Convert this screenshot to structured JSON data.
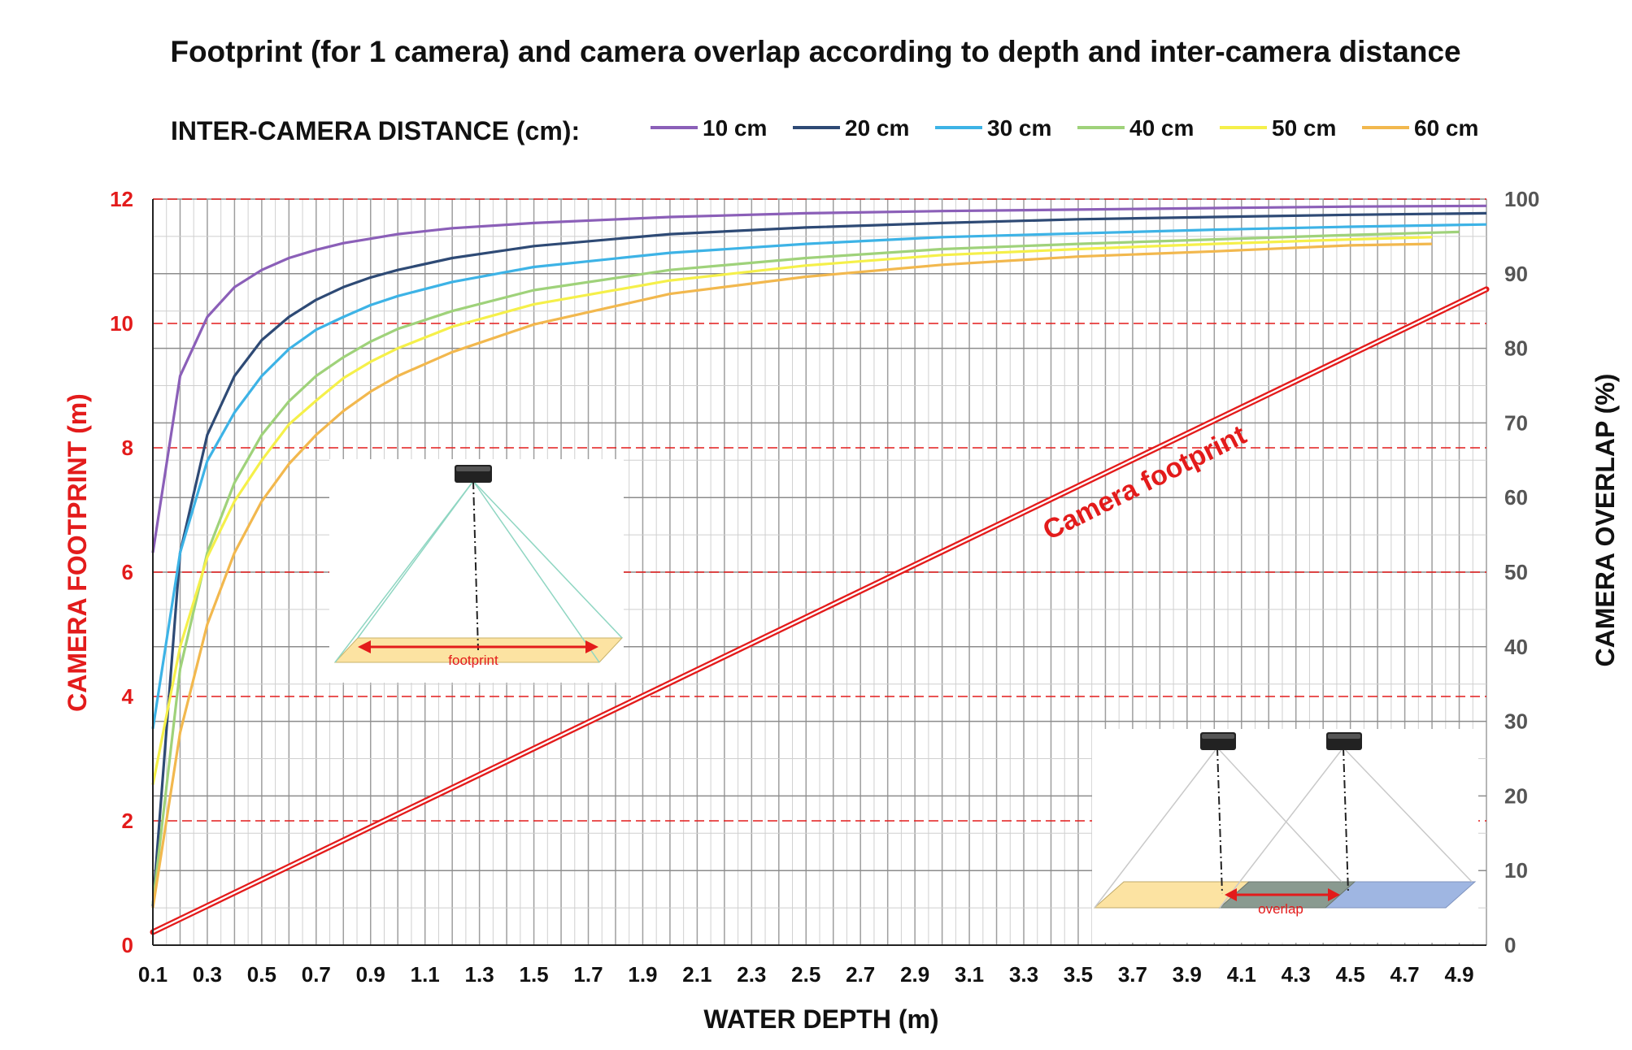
{
  "chart_data": {
    "type": "line",
    "title": "Footprint (for 1 camera) and camera overlap according to depth and inter-camera distance",
    "legend": {
      "title": "INTER-CAMERA  DISTANCE (cm):",
      "placement": "top"
    },
    "xlabel": "WATER DEPTH (m)",
    "ylabel_left": "CAMERA FOOTPRINT (m)",
    "ylabel_right": "CAMERA OVERLAP (%)",
    "xlim": [
      0.1,
      5.0
    ],
    "ylim_left": [
      0,
      12
    ],
    "ylim_right": [
      0,
      100
    ],
    "x_ticks": [
      "0.1",
      "0.3",
      "0.5",
      "0.7",
      "0.9",
      "1.1",
      "1.3",
      "1.5",
      "1.7",
      "1.9",
      "2.1",
      "2.3",
      "2.5",
      "2.7",
      "2.9",
      "3.1",
      "3.3",
      "3.5",
      "3.7",
      "3.9",
      "4.1",
      "4.3",
      "4.5",
      "4.7",
      "4.9"
    ],
    "y_left_ticks": [
      "0",
      "2",
      "4",
      "6",
      "8",
      "10",
      "12"
    ],
    "y_right_ticks": [
      "0",
      "10",
      "20",
      "30",
      "40",
      "50",
      "60",
      "70",
      "80",
      "90",
      "100"
    ],
    "grid": true,
    "footprint_series": {
      "axis": "left",
      "color": "#e31b1b",
      "x": [
        0.1,
        5.0
      ],
      "values": [
        0.21,
        10.55
      ]
    },
    "series": [
      {
        "name": "10 cm",
        "color": "#8b5fb8",
        "axis": "right",
        "end_x": 5.0,
        "x": [
          0.1,
          0.2,
          0.3,
          0.4,
          0.5,
          0.6,
          0.7,
          0.8,
          0.9,
          1.0,
          1.2,
          1.5,
          2.0,
          2.5,
          3.0,
          3.5,
          4.0,
          4.5,
          5.0
        ],
        "values": [
          52.6,
          76.3,
          84.2,
          88.2,
          90.5,
          92.1,
          93.2,
          94.1,
          94.7,
          95.3,
          96.1,
          96.8,
          97.6,
          98.1,
          98.4,
          98.6,
          98.8,
          99.0,
          99.1
        ]
      },
      {
        "name": "20 cm",
        "color": "#2e4a75",
        "axis": "right",
        "end_x": 5.0,
        "x": [
          0.1,
          0.2,
          0.3,
          0.4,
          0.5,
          0.6,
          0.7,
          0.8,
          0.9,
          1.0,
          1.2,
          1.5,
          2.0,
          2.5,
          3.0,
          3.5,
          4.0,
          4.5,
          5.0
        ],
        "values": [
          5.2,
          52.6,
          68.4,
          76.3,
          81.1,
          84.2,
          86.5,
          88.2,
          89.5,
          90.5,
          92.1,
          93.7,
          95.3,
          96.2,
          96.8,
          97.3,
          97.6,
          97.9,
          98.1
        ]
      },
      {
        "name": "30 cm",
        "color": "#3db3e6",
        "axis": "right",
        "end_x": 5.0,
        "x": [
          0.1,
          0.2,
          0.3,
          0.4,
          0.5,
          0.6,
          0.7,
          0.8,
          0.9,
          1.0,
          1.2,
          1.5,
          2.0,
          2.5,
          3.0,
          3.5,
          4.0,
          4.5,
          5.0
        ],
        "values": [
          29.0,
          52.6,
          64.9,
          71.4,
          76.3,
          79.9,
          82.5,
          84.2,
          85.8,
          87.0,
          88.9,
          90.9,
          92.8,
          94.0,
          94.9,
          95.4,
          95.9,
          96.3,
          96.6
        ]
      },
      {
        "name": "40 cm",
        "color": "#9fd27a",
        "axis": "right",
        "end_x": 4.9,
        "x": [
          0.1,
          0.2,
          0.3,
          0.4,
          0.5,
          0.6,
          0.7,
          0.8,
          0.9,
          1.0,
          1.2,
          1.5,
          2.0,
          2.5,
          3.0,
          3.5,
          4.0,
          4.5,
          4.9
        ],
        "values": [
          5.5,
          37.0,
          52.6,
          62.0,
          68.4,
          72.9,
          76.3,
          78.8,
          80.9,
          82.6,
          85.0,
          87.8,
          90.5,
          92.1,
          93.3,
          94.0,
          94.6,
          95.2,
          95.6
        ]
      },
      {
        "name": "50 cm",
        "color": "#f5f04a",
        "axis": "right",
        "end_x": 4.8,
        "x": [
          0.1,
          0.2,
          0.3,
          0.4,
          0.5,
          0.6,
          0.7,
          0.8,
          0.9,
          1.0,
          1.2,
          1.5,
          2.0,
          2.5,
          3.0,
          3.5,
          4.0,
          4.5,
          4.8
        ],
        "values": [
          21.5,
          40.0,
          52.0,
          59.5,
          65.0,
          69.8,
          73.0,
          76.0,
          78.2,
          80.0,
          82.9,
          85.9,
          89.1,
          91.1,
          92.5,
          93.3,
          94.0,
          94.6,
          94.9
        ]
      },
      {
        "name": "60 cm",
        "color": "#f2b84e",
        "axis": "right",
        "end_x": 4.8,
        "x": [
          0.1,
          0.2,
          0.3,
          0.4,
          0.5,
          0.6,
          0.7,
          0.8,
          0.9,
          1.0,
          1.2,
          1.5,
          2.0,
          2.5,
          3.0,
          3.5,
          4.0,
          4.5,
          4.8
        ],
        "values": [
          5.0,
          28.5,
          43.0,
          52.6,
          59.5,
          64.5,
          68.4,
          71.6,
          74.2,
          76.3,
          79.5,
          83.2,
          87.3,
          89.6,
          91.2,
          92.3,
          93.0,
          93.8,
          94.0
        ]
      }
    ],
    "annotations": [
      {
        "text": "Camera footprint",
        "color": "#e31b1b"
      }
    ],
    "insets": {
      "single_camera_label": "footprint",
      "dual_camera_label": "overlap"
    }
  }
}
